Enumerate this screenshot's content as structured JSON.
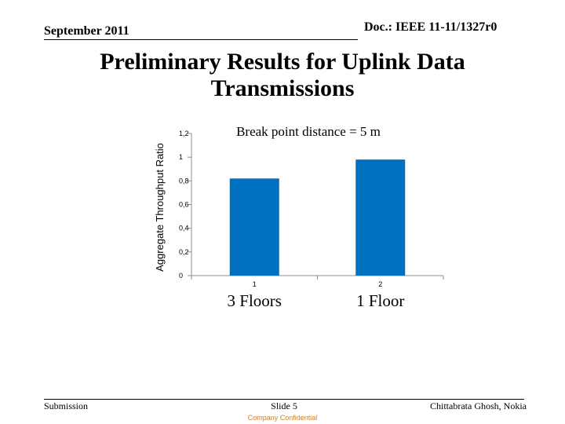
{
  "header": {
    "date": "September 2011",
    "doc_id": "Doc.: IEEE 11-11/1327r0"
  },
  "title": "Preliminary Results for Uplink Data Transmissions",
  "footer": {
    "left": "Submission",
    "center": "Slide 5",
    "right": "Chittabrata Ghosh, Nokia",
    "confidential": "Company Confidential",
    "confidential_color": "#c8822a"
  },
  "chart_data": {
    "type": "bar",
    "title": "Break point distance = 5 m",
    "ylabel": "Aggregate Throughput Ratio",
    "xlabel": "",
    "categories": [
      "1",
      "2"
    ],
    "category_labels": [
      "3 Floors",
      "1 Floor"
    ],
    "values": [
      0.82,
      0.98
    ],
    "ylim": [
      0,
      1.2
    ],
    "yticks": [
      "0",
      "0,2",
      "0,4",
      "0,6",
      "0,8",
      "1",
      "1,2"
    ],
    "bar_color": "#0070c0",
    "grid": false,
    "legend": "none"
  }
}
